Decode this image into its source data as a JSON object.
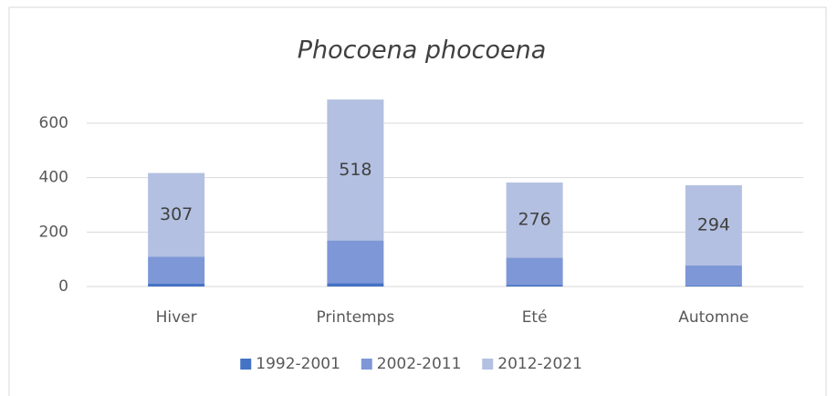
{
  "chart_data": {
    "type": "stacked_bar",
    "title": "Phocoena phocoena",
    "categories": [
      "Hiver",
      "Printemps",
      "Eté",
      "Automne"
    ],
    "series": [
      {
        "name": "1992-2001",
        "color": "#4472c4",
        "values": [
          10,
          12,
          5,
          3
        ]
      },
      {
        "name": "2002-2011",
        "color": "#7e97d6",
        "values": [
          100,
          157,
          101,
          75
        ]
      },
      {
        "name": "2012-2021",
        "color": "#b3c0e1",
        "values": [
          307,
          518,
          276,
          294
        ],
        "data_labels": true
      }
    ],
    "ylim": [
      0,
      700
    ],
    "yticks": [
      0,
      200,
      400,
      600
    ],
    "grid": true,
    "legend": "bottom"
  }
}
